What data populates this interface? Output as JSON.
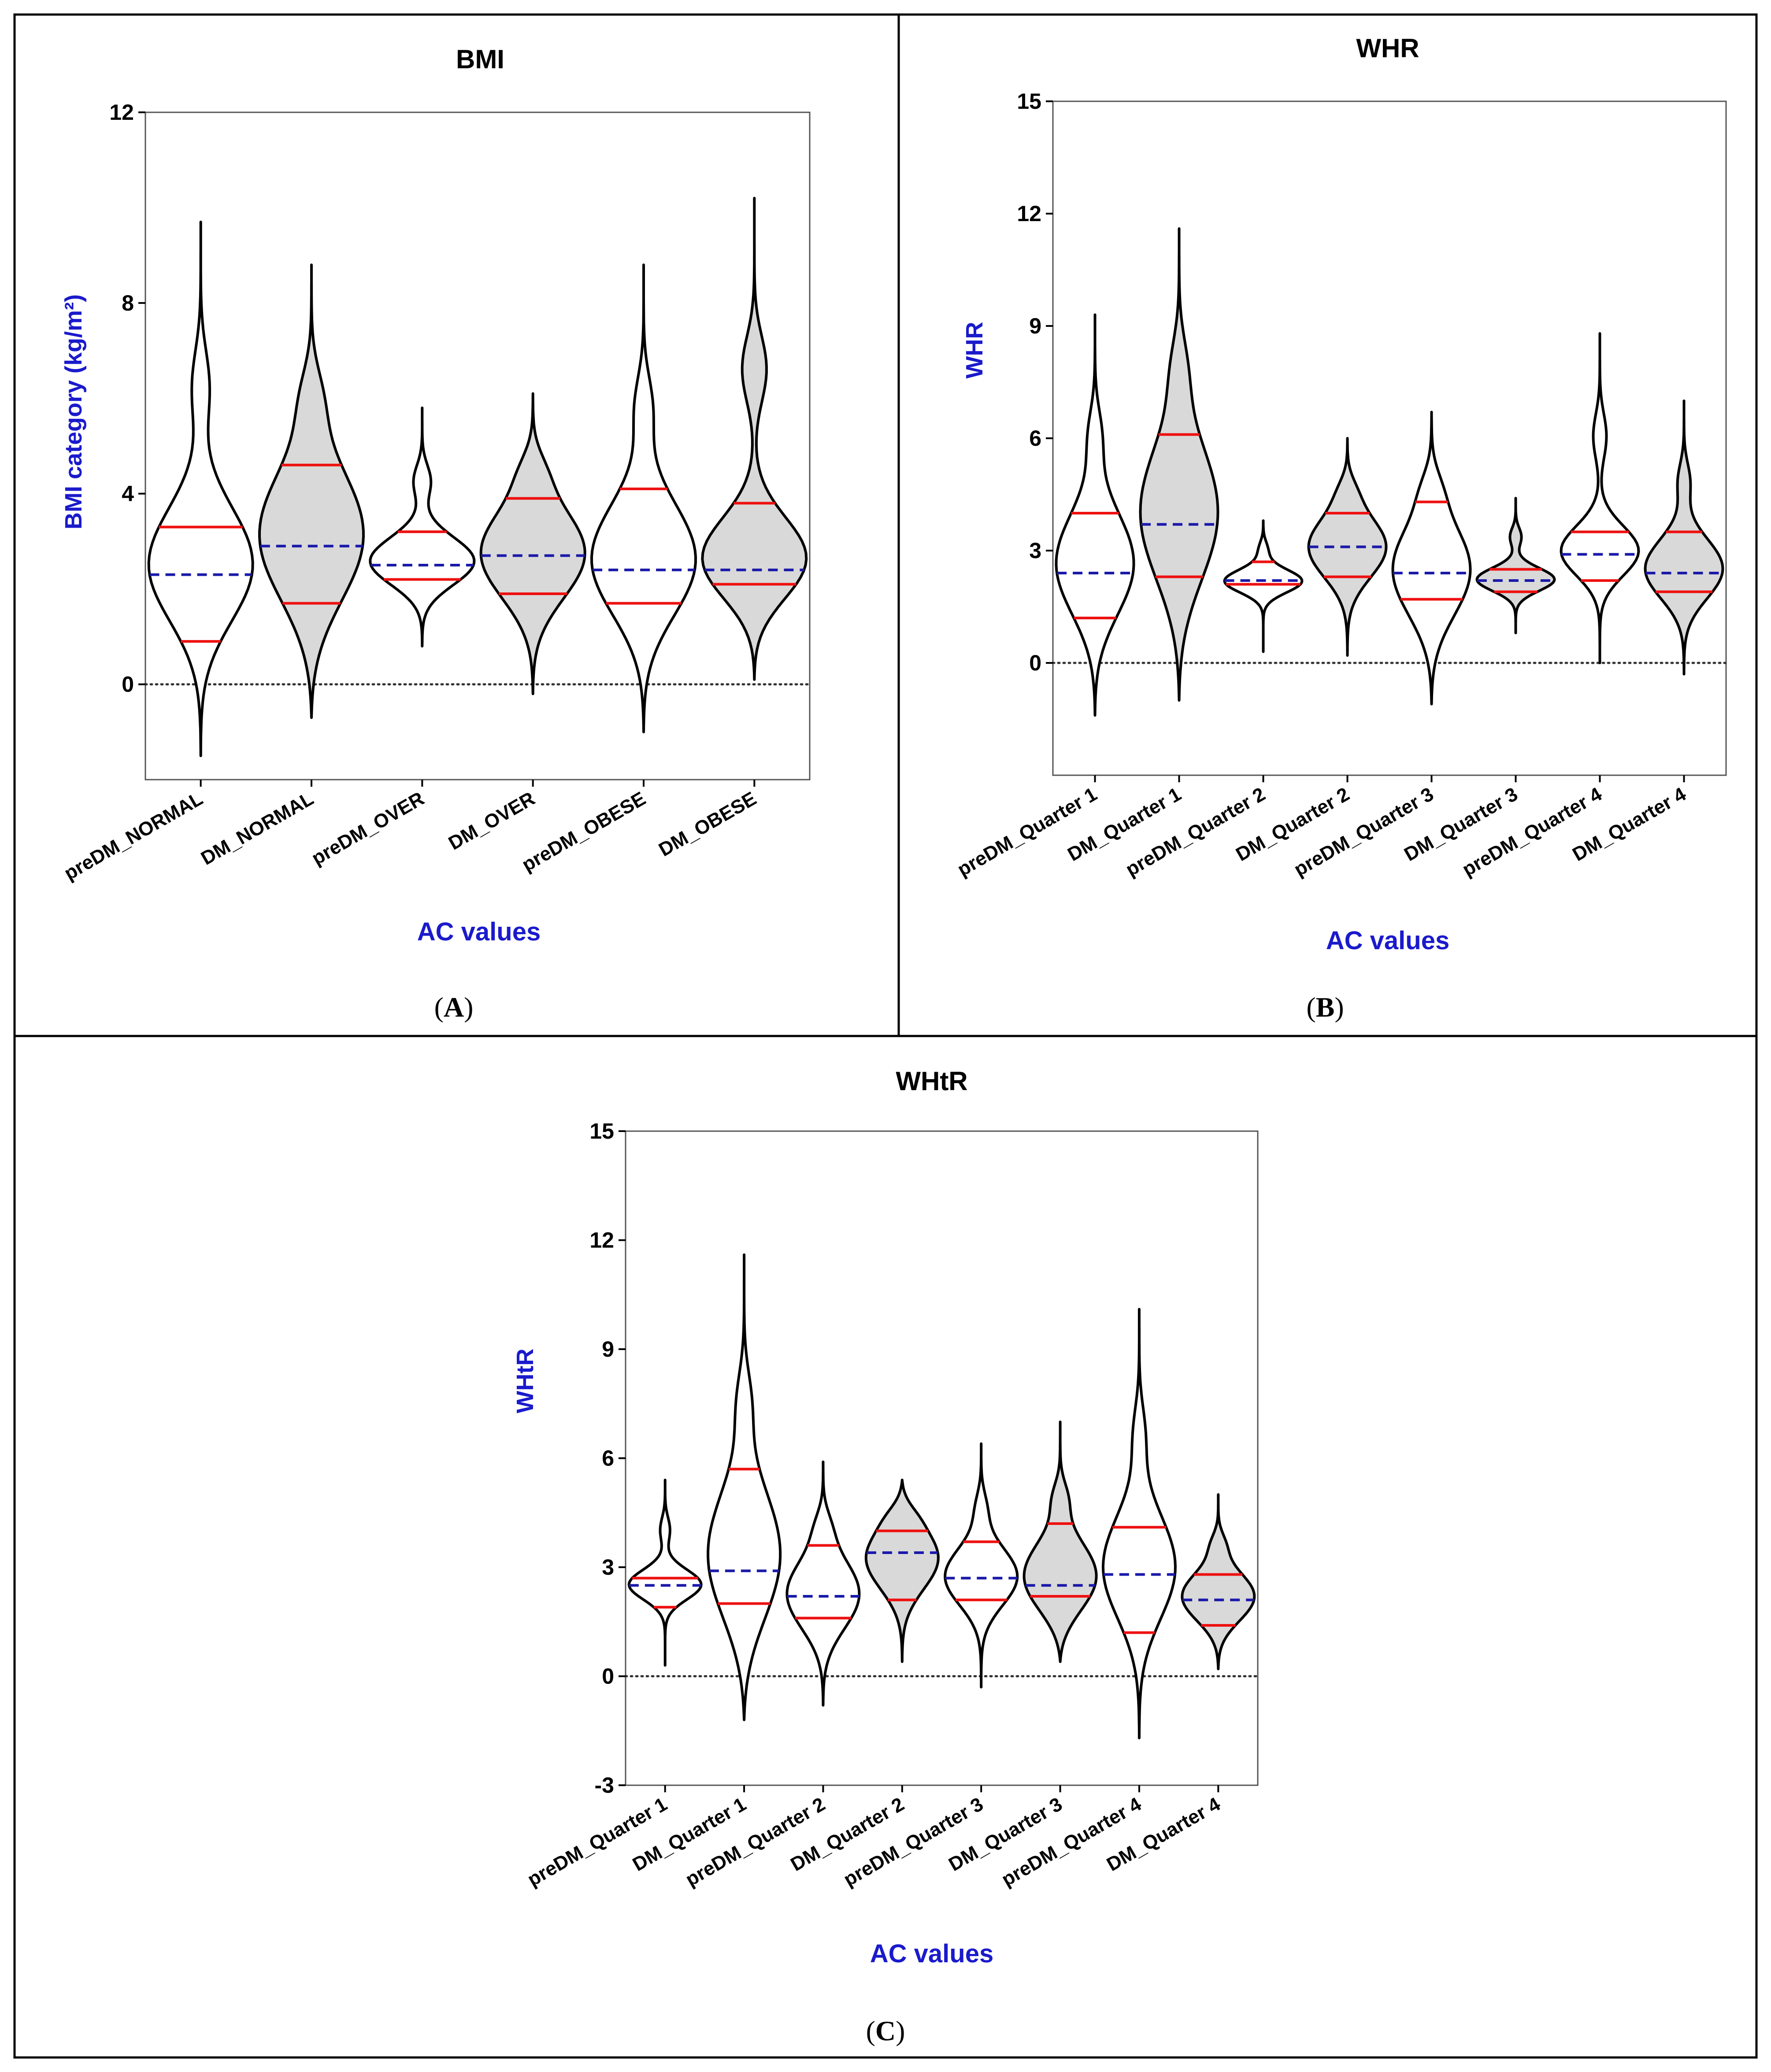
{
  "colors": {
    "median_line": "#ee1111",
    "mean_line": "#1a1aaa",
    "shaded_fill": "#d9d9d9",
    "axis_label": "#1a1acc",
    "outline": "#000000"
  },
  "panels": [
    {
      "label_open": "(",
      "label_letter": "A",
      "label_close": ")"
    },
    {
      "label_open": "(",
      "label_letter": "B",
      "label_close": ")"
    },
    {
      "label_open": "(",
      "label_letter": "C",
      "label_close": ")"
    }
  ],
  "chart_data": [
    {
      "type": "violin",
      "title": "BMI",
      "ylabel": "BMI category (kg/m²)",
      "xlabel": "AC values",
      "ylim": [
        -2,
        12
      ],
      "yticks": [
        0,
        4,
        8,
        12
      ],
      "reference_line": 0,
      "categories": [
        "preDM_NORMAL",
        "DM_NORMAL",
        "preDM_OVER",
        "DM_OVER",
        "preDM_OBESE",
        "DM_OBESE"
      ],
      "series": [
        {
          "name": "preDM_NORMAL",
          "min": -1.5,
          "max": 9.7,
          "q1": 0.9,
          "median": 2.3,
          "q3": 3.3,
          "shaded": false
        },
        {
          "name": "DM_NORMAL",
          "min": -0.7,
          "max": 8.8,
          "q1": 1.7,
          "median": 2.9,
          "q3": 4.6,
          "shaded": true
        },
        {
          "name": "preDM_OVER",
          "min": 0.8,
          "max": 5.8,
          "q1": 2.2,
          "median": 2.5,
          "q3": 3.2,
          "shaded": false
        },
        {
          "name": "DM_OVER",
          "min": -0.2,
          "max": 6.1,
          "q1": 1.9,
          "median": 2.7,
          "q3": 3.9,
          "shaded": true
        },
        {
          "name": "preDM_OBESE",
          "min": -1.0,
          "max": 8.8,
          "q1": 1.7,
          "median": 2.4,
          "q3": 4.1,
          "shaded": false
        },
        {
          "name": "DM_OBESE",
          "min": 0.1,
          "max": 10.2,
          "q1": 2.1,
          "median": 2.4,
          "q3": 3.8,
          "shaded": true
        }
      ]
    },
    {
      "type": "violin",
      "title": "WHR",
      "ylabel": "WHR",
      "xlabel": "AC values",
      "ylim": [
        -3,
        15
      ],
      "yticks": [
        0,
        3,
        6,
        9,
        12,
        15
      ],
      "reference_line": 0,
      "categories": [
        "preDM_Quarter 1",
        "DM_Quarter 1",
        "preDM_Quarter 2",
        "DM_Quarter 2",
        "preDM_Quarter 3",
        "DM_Quarter 3",
        "preDM_Quarter 4",
        "DM_Quarter 4"
      ],
      "series": [
        {
          "name": "preDM_Quarter 1",
          "min": -1.4,
          "max": 9.3,
          "q1": 1.2,
          "median": 2.4,
          "q3": 4.0,
          "shaded": false
        },
        {
          "name": "DM_Quarter 1",
          "min": -1.0,
          "max": 11.6,
          "q1": 2.3,
          "median": 3.7,
          "q3": 6.1,
          "shaded": true
        },
        {
          "name": "preDM_Quarter 2",
          "min": 0.3,
          "max": 3.8,
          "q1": 2.1,
          "median": 2.2,
          "q3": 2.7,
          "shaded": false
        },
        {
          "name": "DM_Quarter 2",
          "min": 0.2,
          "max": 6.0,
          "q1": 2.3,
          "median": 3.1,
          "q3": 4.0,
          "shaded": true
        },
        {
          "name": "preDM_Quarter 3",
          "min": -1.1,
          "max": 6.7,
          "q1": 1.7,
          "median": 2.4,
          "q3": 4.3,
          "shaded": false
        },
        {
          "name": "DM_Quarter 3",
          "min": 0.8,
          "max": 4.4,
          "q1": 1.9,
          "median": 2.2,
          "q3": 2.5,
          "shaded": true
        },
        {
          "name": "preDM_Quarter 4",
          "min": 0.0,
          "max": 8.8,
          "q1": 2.2,
          "median": 2.9,
          "q3": 3.5,
          "shaded": false
        },
        {
          "name": "DM_Quarter 4",
          "min": -0.3,
          "max": 7.0,
          "q1": 1.9,
          "median": 2.4,
          "q3": 3.5,
          "shaded": true
        }
      ]
    },
    {
      "type": "violin",
      "title": "WHtR",
      "ylabel": "WHtR",
      "xlabel": "AC values",
      "ylim": [
        -3,
        15
      ],
      "yticks": [
        -3,
        0,
        3,
        6,
        9,
        12,
        15
      ],
      "reference_line": 0,
      "categories": [
        "preDM_Quarter 1",
        "DM_Quarter 1",
        "preDM_Quarter 2",
        "DM_Quarter 2",
        "preDM_Quarter 3",
        "DM_Quarter 3",
        "preDM_Quarter 4",
        "DM_Quarter 4"
      ],
      "series": [
        {
          "name": "preDM_Quarter 1",
          "min": 0.3,
          "max": 5.4,
          "q1": 1.9,
          "median": 2.5,
          "q3": 2.7,
          "shaded": false
        },
        {
          "name": "DM_Quarter 1",
          "min": -1.2,
          "max": 11.6,
          "q1": 2.0,
          "median": 2.9,
          "q3": 5.7,
          "shaded": false
        },
        {
          "name": "preDM_Quarter 2",
          "min": -0.8,
          "max": 5.9,
          "q1": 1.6,
          "median": 2.2,
          "q3": 3.6,
          "shaded": false
        },
        {
          "name": "DM_Quarter 2",
          "min": 0.4,
          "max": 5.4,
          "q1": 2.1,
          "median": 3.4,
          "q3": 4.0,
          "shaded": true
        },
        {
          "name": "preDM_Quarter 3",
          "min": -0.3,
          "max": 6.4,
          "q1": 2.1,
          "median": 2.7,
          "q3": 3.7,
          "shaded": false
        },
        {
          "name": "DM_Quarter 3",
          "min": 0.4,
          "max": 7.0,
          "q1": 2.2,
          "median": 2.5,
          "q3": 4.2,
          "shaded": true
        },
        {
          "name": "preDM_Quarter 4",
          "min": -1.7,
          "max": 10.1,
          "q1": 1.2,
          "median": 2.8,
          "q3": 4.1,
          "shaded": false
        },
        {
          "name": "DM_Quarter 4",
          "min": 0.2,
          "max": 5.0,
          "q1": 1.4,
          "median": 2.1,
          "q3": 2.8,
          "shaded": true
        }
      ]
    }
  ]
}
